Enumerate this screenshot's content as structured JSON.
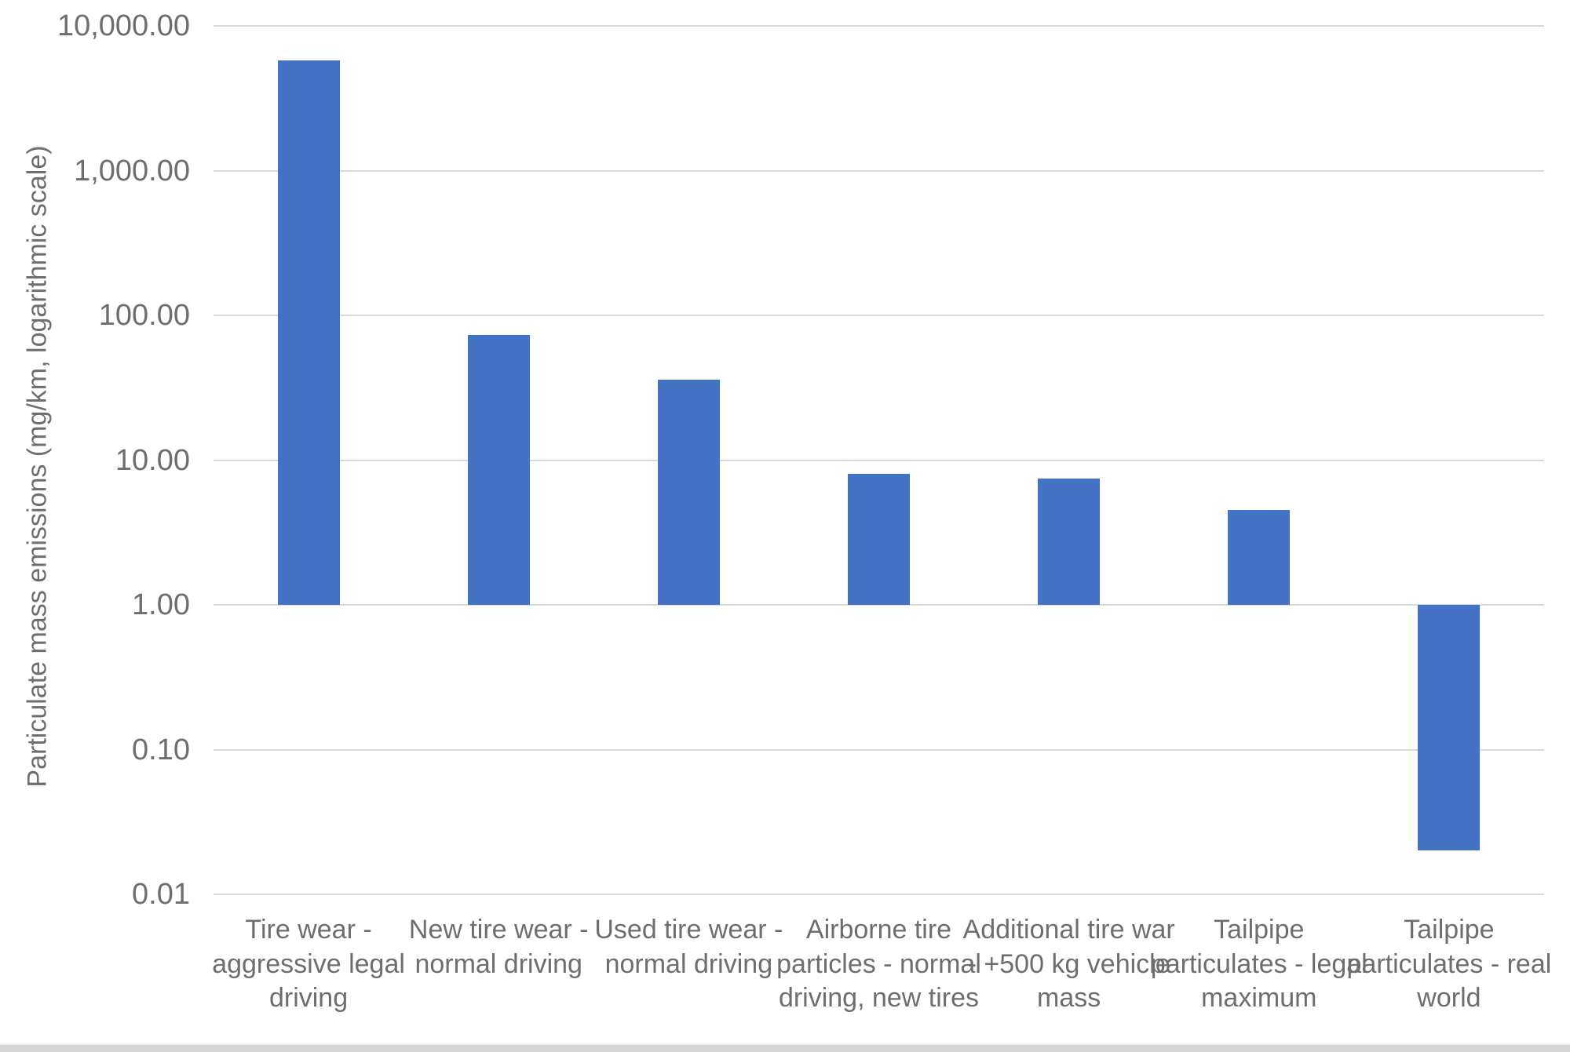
{
  "chart_data": {
    "type": "bar",
    "title": "",
    "xlabel": "",
    "ylabel": "Particulate mass emissions (mg/km, logarithmic scale)",
    "scale": "log",
    "grid": true,
    "legend": "none",
    "ylim": [
      0.01,
      10000
    ],
    "baseline": 1,
    "y_ticks": [
      "10,000.00",
      "1,000.00",
      "100.00",
      "10.00",
      "1.00",
      "0.10",
      "0.01"
    ],
    "y_tick_values": [
      10000,
      1000,
      100,
      10,
      1,
      0.1,
      0.01
    ],
    "categories": [
      "Tire wear - aggressive legal driving",
      "New tire wear - normal driving",
      "Used tire wear - normal driving",
      "Airborne tire particles - normal driving, new tires",
      "Additional tire war - +500 kg vehicle mass",
      "Tailpipe particulates - legal maximum",
      "Tailpipe particulates - real world"
    ],
    "values": [
      5800,
      73,
      36,
      8,
      7.5,
      4.5,
      0.02
    ],
    "bar_color": "#4472C4",
    "gridline_color": "#d9d9d9",
    "text_color": "#6e6e6e"
  }
}
